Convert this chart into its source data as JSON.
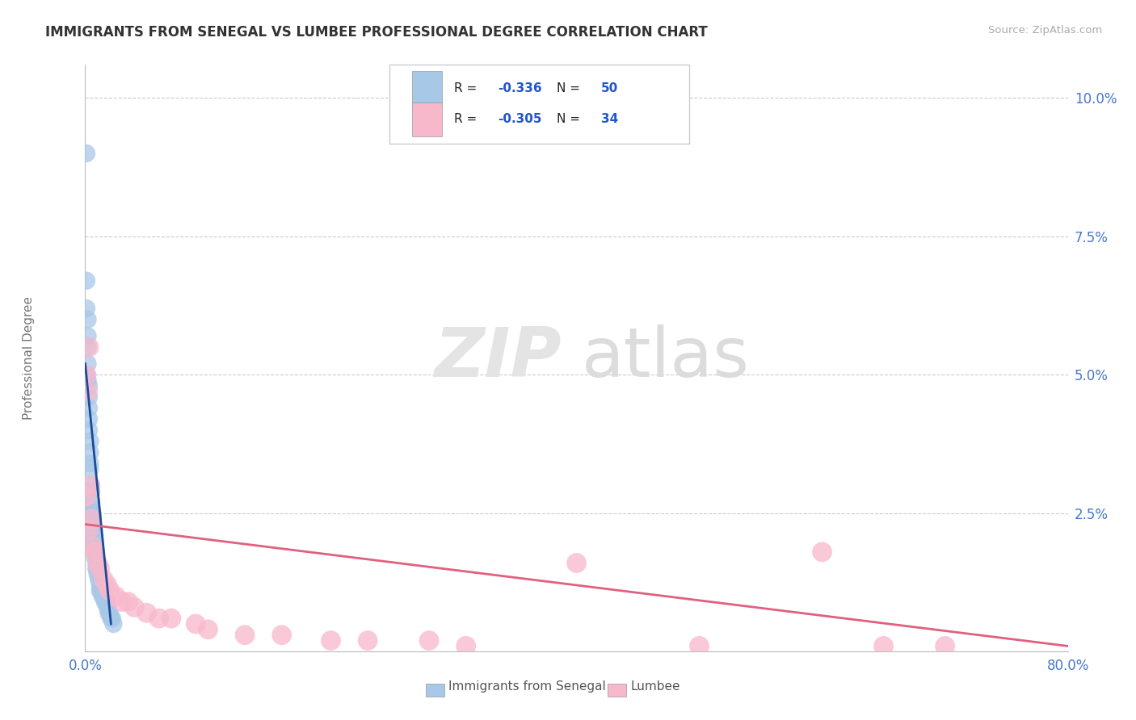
{
  "title": "IMMIGRANTS FROM SENEGAL VS LUMBEE PROFESSIONAL DEGREE CORRELATION CHART",
  "source": "Source: ZipAtlas.com",
  "ylabel": "Professional Degree",
  "legend_blue_label": "Immigrants from Senegal",
  "legend_pink_label": "Lumbee",
  "blue_r": "-0.336",
  "blue_n": "50",
  "pink_r": "-0.305",
  "pink_n": "34",
  "blue_color": "#a8c8e8",
  "blue_line_color": "#1a4a9a",
  "pink_color": "#f8b8cc",
  "pink_line_color": "#e06080",
  "value_color": "#2255cc",
  "text_color": "#222222",
  "tick_color": "#4477cc",
  "ylabel_color": "#777777",
  "xlim": [
    0.0,
    0.8
  ],
  "ylim": [
    0.0,
    0.106
  ],
  "yticks": [
    0.0,
    0.025,
    0.05,
    0.075,
    0.1
  ],
  "ytick_labels": [
    "",
    "2.5%",
    "5.0%",
    "7.5%",
    "10.0%"
  ],
  "background": "#ffffff",
  "grid_color": "#cccccc",
  "blue_x": [
    0.001,
    0.001,
    0.001,
    0.002,
    0.002,
    0.002,
    0.002,
    0.002,
    0.003,
    0.003,
    0.003,
    0.003,
    0.003,
    0.004,
    0.004,
    0.004,
    0.004,
    0.005,
    0.005,
    0.005,
    0.005,
    0.006,
    0.006,
    0.006,
    0.006,
    0.007,
    0.007,
    0.007,
    0.008,
    0.008,
    0.008,
    0.009,
    0.009,
    0.01,
    0.01,
    0.011,
    0.012,
    0.012,
    0.013,
    0.014,
    0.015,
    0.016,
    0.017,
    0.018,
    0.019,
    0.02,
    0.021,
    0.022,
    0.023,
    0.001
  ],
  "blue_y": [
    0.09,
    0.067,
    0.062,
    0.06,
    0.057,
    0.055,
    0.052,
    0.049,
    0.048,
    0.046,
    0.044,
    0.042,
    0.04,
    0.038,
    0.036,
    0.034,
    0.033,
    0.03,
    0.029,
    0.027,
    0.026,
    0.025,
    0.024,
    0.023,
    0.022,
    0.021,
    0.02,
    0.019,
    0.019,
    0.018,
    0.017,
    0.016,
    0.015,
    0.015,
    0.014,
    0.013,
    0.012,
    0.011,
    0.011,
    0.01,
    0.01,
    0.009,
    0.009,
    0.008,
    0.007,
    0.007,
    0.006,
    0.006,
    0.005,
    0.05
  ],
  "pink_x": [
    0.001,
    0.001,
    0.002,
    0.003,
    0.004,
    0.005,
    0.006,
    0.008,
    0.01,
    0.012,
    0.015,
    0.018,
    0.02,
    0.025,
    0.03,
    0.035,
    0.04,
    0.05,
    0.06,
    0.07,
    0.09,
    0.1,
    0.13,
    0.16,
    0.2,
    0.23,
    0.28,
    0.31,
    0.4,
    0.5,
    0.6,
    0.65,
    0.003,
    0.7
  ],
  "pink_y": [
    0.05,
    0.028,
    0.047,
    0.022,
    0.03,
    0.024,
    0.019,
    0.018,
    0.016,
    0.015,
    0.013,
    0.012,
    0.011,
    0.01,
    0.009,
    0.009,
    0.008,
    0.007,
    0.006,
    0.006,
    0.005,
    0.004,
    0.003,
    0.003,
    0.002,
    0.002,
    0.002,
    0.001,
    0.016,
    0.001,
    0.018,
    0.001,
    0.055,
    0.001
  ],
  "blue_trend_x": [
    0.0,
    0.021
  ],
  "blue_trend_y": [
    0.052,
    0.005
  ],
  "pink_trend_x": [
    0.0,
    0.8
  ],
  "pink_trend_y": [
    0.023,
    0.001
  ]
}
